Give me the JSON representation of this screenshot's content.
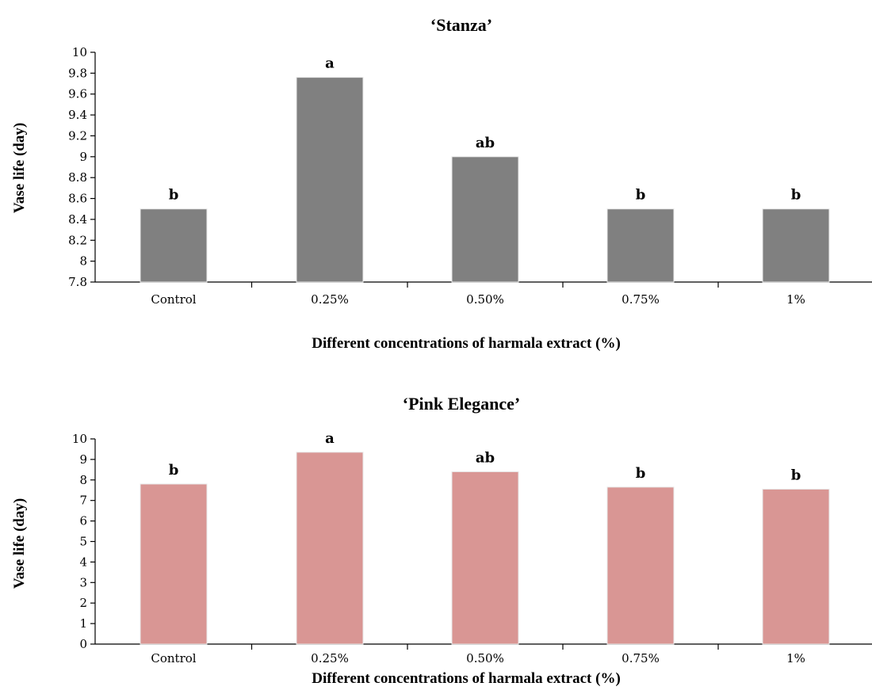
{
  "chart_data": [
    {
      "type": "bar",
      "title": "‘Stanza’",
      "xlabel": "Different concentrations of harmala extract (%)",
      "ylabel": "Vase life (day)",
      "categories": [
        "Control",
        "0.25%",
        "0.50%",
        "0.75%",
        "1%"
      ],
      "values": [
        8.5,
        9.76,
        9.0,
        8.5,
        8.5
      ],
      "data_labels": [
        "b",
        "a",
        "ab",
        "b",
        "b"
      ],
      "ylim": [
        7.8,
        10
      ],
      "yticks": [
        "7.8",
        "8",
        "8.2",
        "8.4",
        "8.6",
        "8.8",
        "9",
        "9.2",
        "9.4",
        "9.6",
        "9.8",
        "10"
      ],
      "bar_color": "#808080",
      "grid": false,
      "legend": "none"
    },
    {
      "type": "bar",
      "title": "‘Pink Elegance’",
      "xlabel": "Different concentrations of harmala extract (%)",
      "ylabel": "Vase life (day)",
      "categories": [
        "Control",
        "0.25%",
        "0.50%",
        "0.75%",
        "1%"
      ],
      "values": [
        7.8,
        9.35,
        8.4,
        7.65,
        7.55
      ],
      "data_labels": [
        "b",
        "a",
        "ab",
        "b",
        "b"
      ],
      "ylim": [
        0,
        10
      ],
      "yticks": [
        "0",
        "1",
        "2",
        "3",
        "4",
        "5",
        "6",
        "7",
        "8",
        "9",
        "10"
      ],
      "bar_color": "#d99694",
      "grid": false,
      "legend": "none"
    }
  ]
}
